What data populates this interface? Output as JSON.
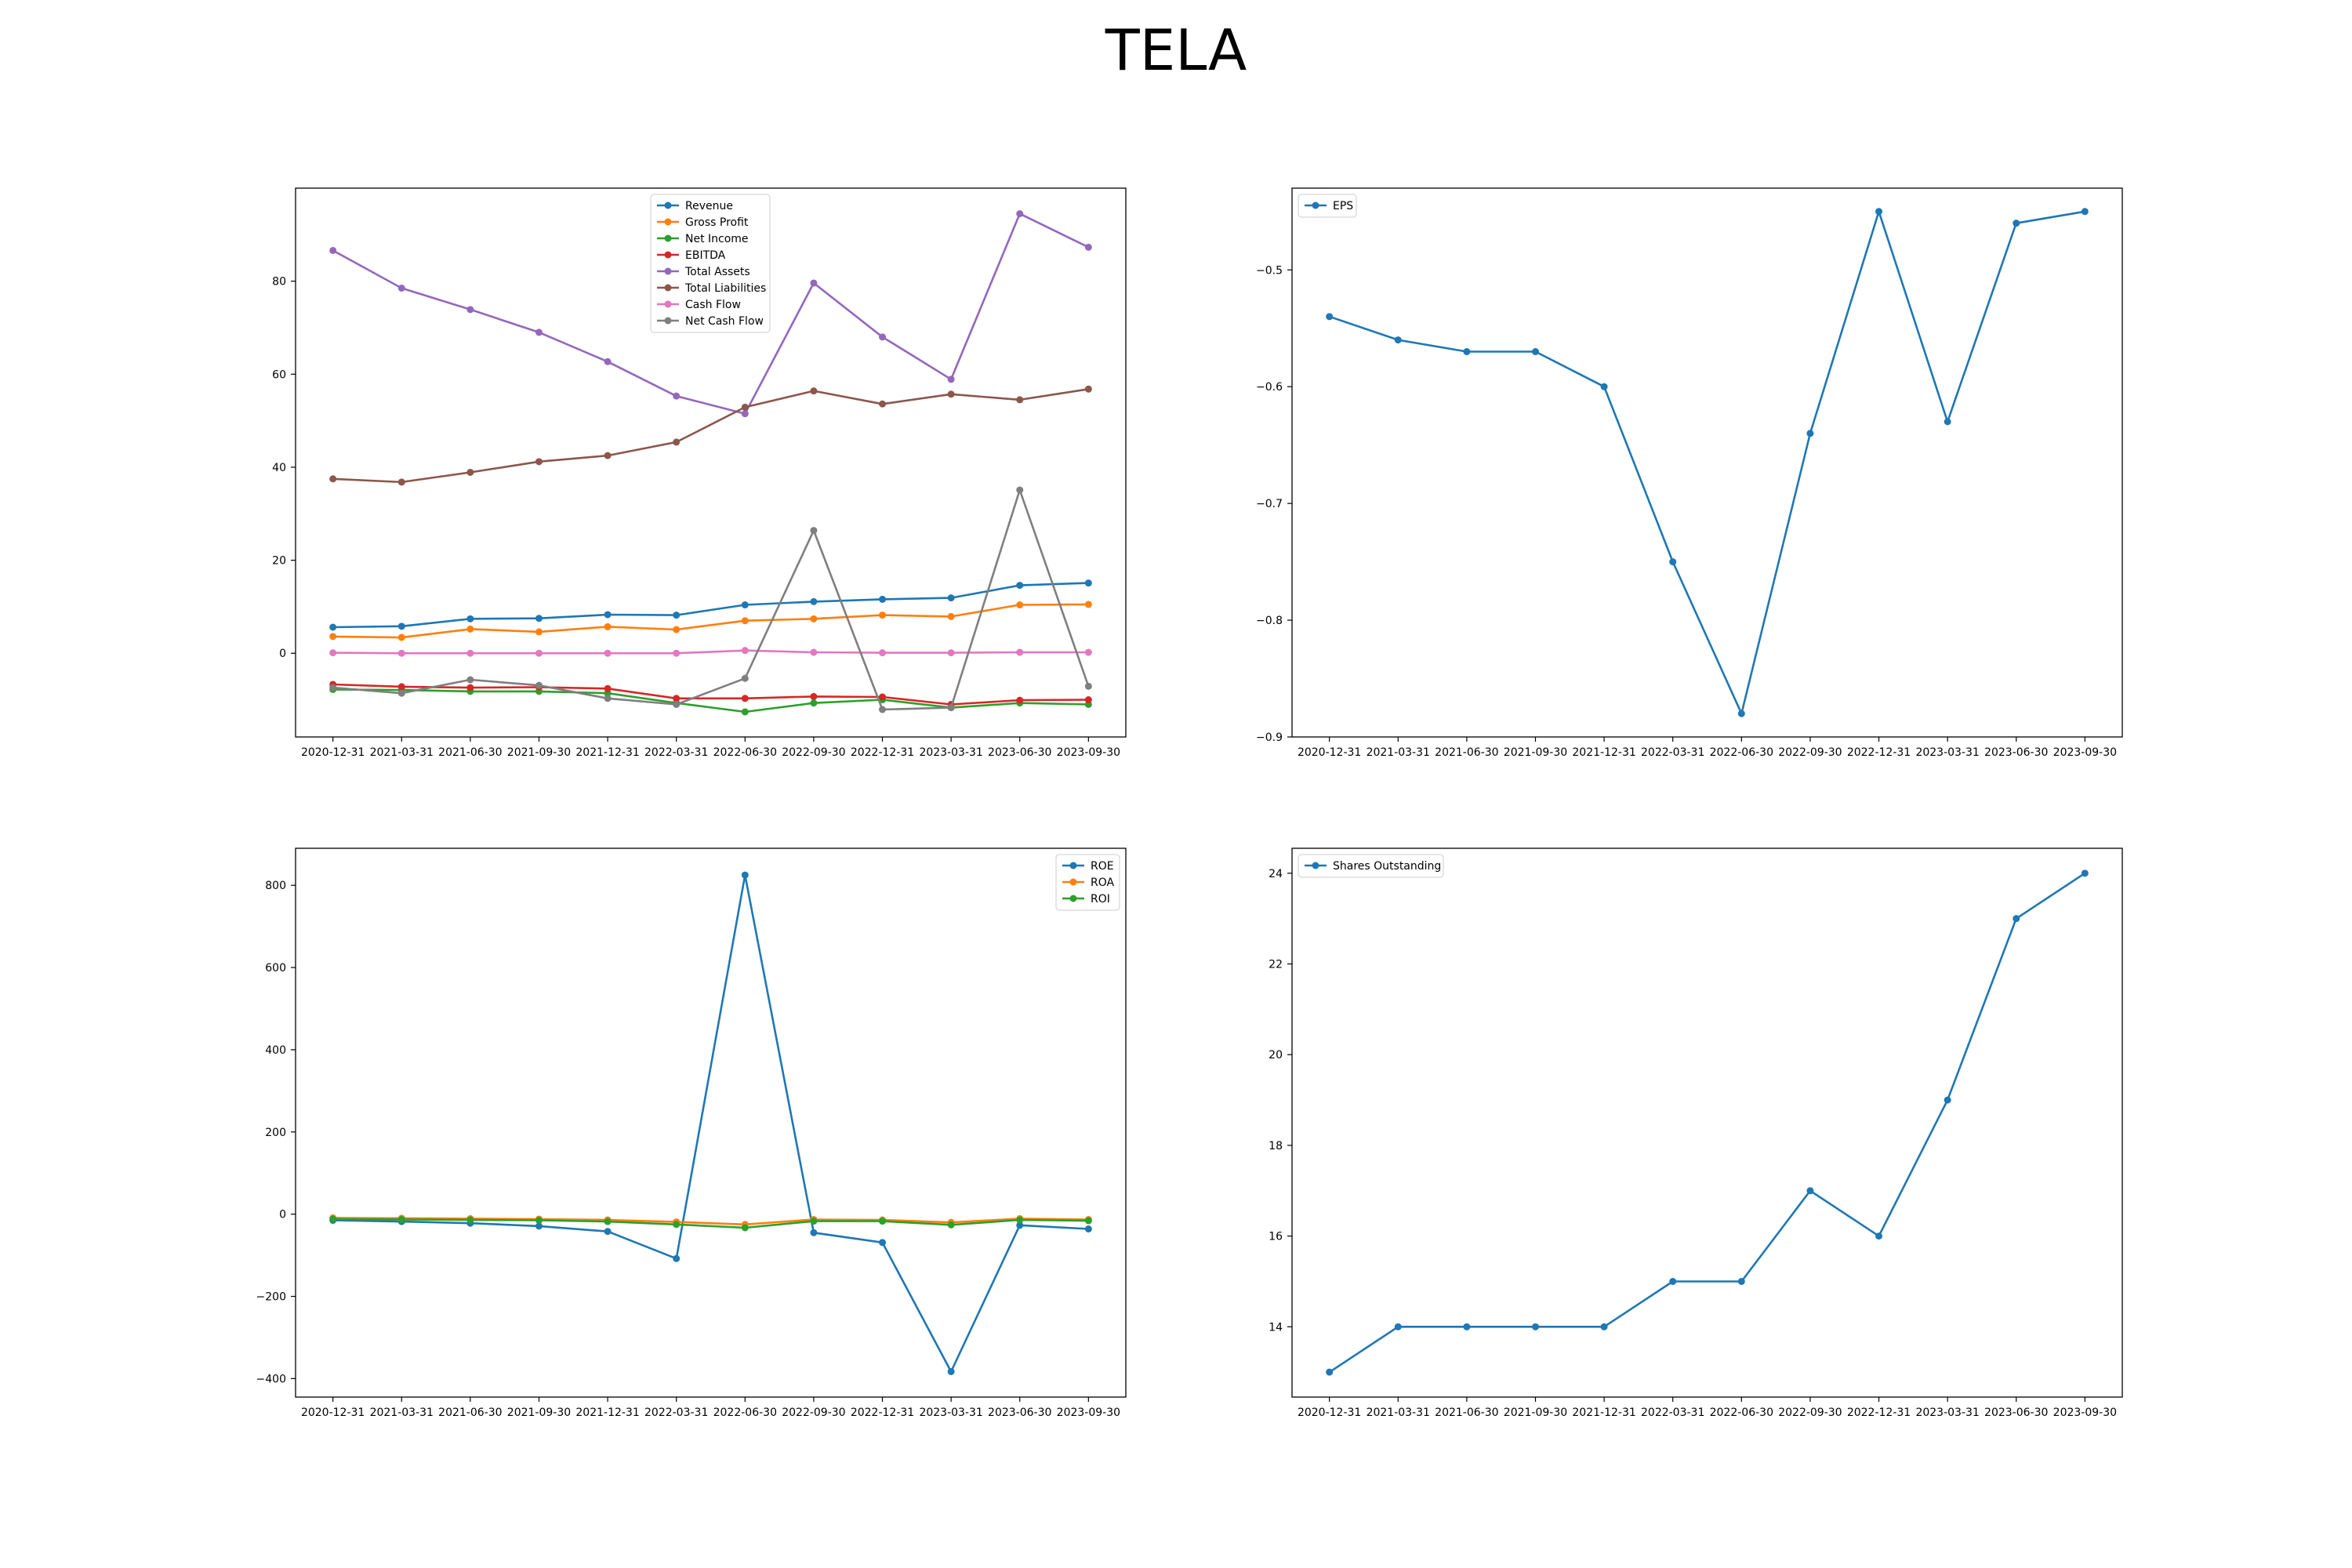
{
  "title": "TELA",
  "chart_data": [
    {
      "type": "line",
      "id": "financials",
      "x": [
        "2020-12-31",
        "2021-03-31",
        "2021-06-30",
        "2021-09-30",
        "2021-12-31",
        "2022-03-31",
        "2022-06-30",
        "2022-09-30",
        "2022-12-31",
        "2023-03-31",
        "2023-06-30",
        "2023-09-30"
      ],
      "ylim": [
        -18,
        100
      ],
      "yticks": [
        0,
        20,
        40,
        60,
        80
      ],
      "legend_position": "upper-center",
      "series": [
        {
          "name": "Revenue",
          "color": "#1f77b4",
          "values": [
            5.6,
            5.8,
            7.4,
            7.5,
            8.3,
            8.2,
            10.4,
            11.1,
            11.6,
            11.9,
            14.6,
            15.1
          ]
        },
        {
          "name": "Gross Profit",
          "color": "#ff7f0e",
          "values": [
            3.6,
            3.4,
            5.2,
            4.6,
            5.7,
            5.1,
            7.0,
            7.4,
            8.2,
            7.9,
            10.4,
            10.5
          ]
        },
        {
          "name": "Net Income",
          "color": "#2ca02c",
          "values": [
            -7.8,
            -7.9,
            -8.2,
            -8.2,
            -8.6,
            -10.7,
            -12.6,
            -10.7,
            -10.0,
            -11.7,
            -10.7,
            -11.0
          ]
        },
        {
          "name": "EBITDA",
          "color": "#d62728",
          "values": [
            -6.7,
            -7.2,
            -7.4,
            -7.3,
            -7.6,
            -9.7,
            -9.7,
            -9.3,
            -9.4,
            -11.0,
            -10.1,
            -10.0
          ]
        },
        {
          "name": "Total Assets",
          "color": "#9467bd",
          "values": [
            86.6,
            78.5,
            73.9,
            69.0,
            62.7,
            55.3,
            51.5,
            79.6,
            68.0,
            58.9,
            94.5,
            87.3
          ]
        },
        {
          "name": "Total Liabilities",
          "color": "#8c564b",
          "values": [
            37.5,
            36.8,
            38.9,
            41.2,
            42.5,
            45.4,
            52.9,
            56.4,
            53.6,
            55.7,
            54.5,
            56.8
          ]
        },
        {
          "name": "Cash Flow",
          "color": "#e377c2",
          "values": [
            0.1,
            0.0,
            0.0,
            0.0,
            0.0,
            0.0,
            0.6,
            0.2,
            0.1,
            0.1,
            0.2,
            0.2
          ]
        },
        {
          "name": "Net Cash Flow",
          "color": "#7f7f7f",
          "values": [
            -7.4,
            -8.6,
            -5.7,
            -6.9,
            -9.7,
            -11.0,
            -5.4,
            26.4,
            -12.1,
            -11.7,
            35.1,
            -7.1
          ]
        }
      ]
    },
    {
      "type": "line",
      "id": "eps",
      "x": [
        "2020-12-31",
        "2021-03-31",
        "2021-06-30",
        "2021-09-30",
        "2021-12-31",
        "2022-03-31",
        "2022-06-30",
        "2022-09-30",
        "2022-12-31",
        "2023-03-31",
        "2023-06-30",
        "2023-09-30"
      ],
      "ylim": [
        -0.9,
        -0.43
      ],
      "yticks": [
        -0.9,
        -0.8,
        -0.7,
        -0.6,
        -0.5
      ],
      "legend_position": "upper-left",
      "series": [
        {
          "name": "EPS",
          "color": "#1f77b4",
          "values": [
            -0.54,
            -0.56,
            -0.57,
            -0.57,
            -0.6,
            -0.75,
            -0.88,
            -0.64,
            -0.45,
            -0.63,
            -0.46,
            -0.45
          ]
        }
      ]
    },
    {
      "type": "line",
      "id": "ratios",
      "x": [
        "2020-12-31",
        "2021-03-31",
        "2021-06-30",
        "2021-09-30",
        "2021-12-31",
        "2022-03-31",
        "2022-06-30",
        "2022-09-30",
        "2022-12-31",
        "2023-03-31",
        "2023-06-30",
        "2023-09-30"
      ],
      "ylim": [
        -445,
        890
      ],
      "yticks": [
        -400,
        -200,
        0,
        200,
        400,
        600,
        800
      ],
      "legend_position": "upper-right",
      "series": [
        {
          "name": "ROE",
          "color": "#1f77b4",
          "values": [
            -15,
            -18,
            -22,
            -29,
            -42,
            -108,
            825,
            -45,
            -69,
            -383,
            -27,
            -36
          ]
        },
        {
          "name": "ROA",
          "color": "#ff7f0e",
          "values": [
            -9,
            -10,
            -11,
            -12,
            -14,
            -19,
            -25,
            -13,
            -14,
            -20,
            -11,
            -13
          ]
        },
        {
          "name": "ROI",
          "color": "#2ca02c",
          "values": [
            -12,
            -13,
            -14,
            -15,
            -18,
            -25,
            -33,
            -17,
            -17,
            -26,
            -14,
            -16
          ]
        }
      ]
    },
    {
      "type": "line",
      "id": "shares",
      "x": [
        "2020-12-31",
        "2021-03-31",
        "2021-06-30",
        "2021-09-30",
        "2021-12-31",
        "2022-03-31",
        "2022-06-30",
        "2022-09-30",
        "2022-12-31",
        "2023-03-31",
        "2023-06-30",
        "2023-09-30"
      ],
      "ylim": [
        12.45,
        24.55
      ],
      "yticks": [
        14,
        16,
        18,
        20,
        22,
        24
      ],
      "legend_position": "upper-left",
      "series": [
        {
          "name": "Shares Outstanding",
          "color": "#1f77b4",
          "values": [
            13,
            14,
            14,
            14,
            14,
            15,
            15,
            17,
            16,
            19,
            23,
            24
          ]
        }
      ]
    }
  ]
}
